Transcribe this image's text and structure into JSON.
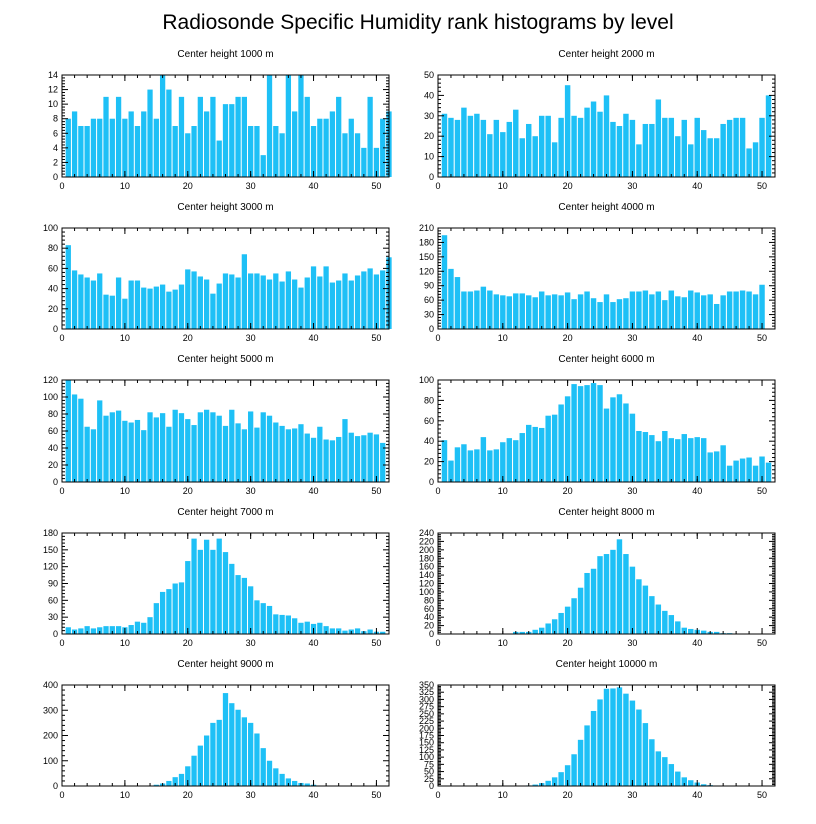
{
  "figure": {
    "title": "Radiosonde Specific Humidity rank histograms by level",
    "bar_color": "#1ec0f6",
    "axis_color": "#000000"
  },
  "chart_data": [
    {
      "type": "bar",
      "title": "Center height 1000 m",
      "xlim": [
        0,
        52
      ],
      "ylim": [
        0,
        14
      ],
      "xticks": [
        0,
        10,
        20,
        30,
        40,
        50
      ],
      "yticks": [
        0,
        2,
        4,
        6,
        8,
        10,
        12,
        14
      ],
      "x_start": 1,
      "values": [
        8,
        9,
        7,
        7,
        8,
        8,
        11,
        8,
        11,
        8,
        9,
        7,
        9,
        12,
        8,
        14,
        12,
        7,
        11,
        6,
        7,
        11,
        9,
        11,
        5,
        10,
        10,
        11,
        11,
        7,
        7,
        3,
        14,
        7,
        6,
        14,
        9,
        14,
        11,
        7,
        8,
        8,
        9,
        11,
        6,
        8,
        6,
        4,
        11,
        4,
        8,
        9
      ]
    },
    {
      "type": "bar",
      "title": "Center height 2000 m",
      "xlim": [
        0,
        52
      ],
      "ylim": [
        0,
        50
      ],
      "xticks": [
        0,
        10,
        20,
        30,
        40,
        50
      ],
      "yticks": [
        0,
        10,
        20,
        30,
        40,
        50
      ],
      "x_start": 1,
      "values": [
        31,
        29,
        28,
        34,
        30,
        31,
        28,
        21,
        28,
        22,
        27,
        33,
        19,
        26,
        20,
        30,
        30,
        17,
        29,
        45,
        30,
        29,
        34,
        37,
        32,
        40,
        27,
        25,
        31,
        28,
        16,
        26,
        26,
        38,
        29,
        29,
        20,
        28,
        16,
        29,
        23,
        19,
        19,
        26,
        28,
        29,
        29,
        14,
        17,
        29,
        40
      ]
    },
    {
      "type": "bar",
      "title": "Center height 3000 m",
      "xlim": [
        0,
        52
      ],
      "ylim": [
        0,
        100
      ],
      "xticks": [
        0,
        10,
        20,
        30,
        40,
        50
      ],
      "yticks": [
        0,
        20,
        40,
        60,
        80,
        100
      ],
      "x_start": 1,
      "values": [
        83,
        58,
        54,
        51,
        48,
        55,
        34,
        33,
        51,
        30,
        48,
        48,
        41,
        40,
        42,
        44,
        37,
        39,
        44,
        59,
        57,
        52,
        49,
        35,
        45,
        55,
        54,
        51,
        74,
        55,
        55,
        53,
        49,
        55,
        47,
        57,
        49,
        41,
        51,
        62,
        52,
        62,
        46,
        48,
        55,
        48,
        53,
        57,
        60,
        54,
        58,
        71
      ]
    },
    {
      "type": "bar",
      "title": "Center height 4000 m",
      "xlim": [
        0,
        52
      ],
      "ylim": [
        0,
        210
      ],
      "xticks": [
        0,
        10,
        20,
        30,
        40,
        50
      ],
      "yticks": [
        0,
        30,
        60,
        90,
        120,
        150,
        180,
        210
      ],
      "x_start": 1,
      "values": [
        195,
        125,
        108,
        78,
        78,
        80,
        88,
        80,
        72,
        70,
        68,
        74,
        74,
        70,
        66,
        78,
        70,
        72,
        70,
        76,
        62,
        72,
        78,
        64,
        56,
        72,
        56,
        62,
        64,
        78,
        78,
        80,
        72,
        78,
        60,
        80,
        68,
        66,
        80,
        76,
        70,
        72,
        52,
        70,
        78,
        78,
        80,
        78,
        72,
        92
      ]
    },
    {
      "type": "bar",
      "title": "Center height 5000 m",
      "xlim": [
        0,
        52
      ],
      "ylim": [
        0,
        120
      ],
      "xticks": [
        0,
        10,
        20,
        30,
        40,
        50
      ],
      "yticks": [
        0,
        20,
        40,
        60,
        80,
        100,
        120
      ],
      "x_start": 1,
      "values": [
        120,
        103,
        98,
        65,
        62,
        96,
        78,
        82,
        84,
        72,
        70,
        73,
        61,
        82,
        76,
        81,
        65,
        85,
        81,
        74,
        67,
        82,
        85,
        82,
        78,
        66,
        85,
        69,
        62,
        83,
        64,
        82,
        78,
        70,
        66,
        62,
        63,
        68,
        57,
        52,
        65,
        50,
        49,
        53,
        74,
        58,
        54,
        55,
        58,
        56,
        46
      ]
    },
    {
      "type": "bar",
      "title": "Center height 6000 m",
      "xlim": [
        0,
        52
      ],
      "ylim": [
        0,
        100
      ],
      "xticks": [
        0,
        10,
        20,
        30,
        40,
        50
      ],
      "yticks": [
        0,
        20,
        40,
        60,
        80,
        100
      ],
      "x_start": 1,
      "values": [
        41,
        21,
        34,
        37,
        31,
        32,
        44,
        31,
        32,
        39,
        43,
        41,
        48,
        56,
        54,
        53,
        65,
        66,
        76,
        84,
        96,
        94,
        95,
        97,
        95,
        72,
        83,
        86,
        77,
        67,
        50,
        49,
        46,
        40,
        50,
        43,
        42,
        47,
        43,
        44,
        43,
        29,
        30,
        36,
        16,
        21,
        23,
        24,
        16,
        25,
        19
      ]
    },
    {
      "type": "bar",
      "title": "Center height 7000 m",
      "xlim": [
        0,
        52
      ],
      "ylim": [
        0,
        180
      ],
      "xticks": [
        0,
        10,
        20,
        30,
        40,
        50
      ],
      "yticks": [
        0,
        30,
        60,
        90,
        120,
        150,
        180
      ],
      "x_start": 1,
      "values": [
        12,
        8,
        10,
        14,
        10,
        12,
        14,
        14,
        14,
        12,
        16,
        22,
        20,
        30,
        55,
        75,
        80,
        90,
        92,
        130,
        170,
        150,
        168,
        150,
        170,
        146,
        125,
        105,
        100,
        85,
        60,
        55,
        50,
        35,
        34,
        33,
        28,
        20,
        22,
        18,
        20,
        14,
        10,
        10,
        6,
        8,
        10,
        5,
        8,
        4,
        4
      ]
    },
    {
      "type": "bar",
      "title": "Center height 8000 m",
      "xlim": [
        0,
        52
      ],
      "ylim": [
        0,
        240
      ],
      "xticks": [
        0,
        10,
        20,
        30,
        40,
        50
      ],
      "yticks": [
        0,
        20,
        40,
        60,
        80,
        100,
        120,
        140,
        160,
        180,
        200,
        220,
        240
      ],
      "x_start": 1,
      "values": [
        0,
        0,
        0,
        0,
        0,
        0,
        0,
        0,
        0,
        0,
        0,
        5,
        5,
        5,
        10,
        15,
        25,
        35,
        50,
        65,
        85,
        110,
        145,
        155,
        185,
        190,
        200,
        225,
        190,
        160,
        130,
        115,
        90,
        70,
        55,
        45,
        30,
        15,
        12,
        10,
        8,
        5,
        5,
        2,
        2,
        0,
        0,
        0,
        0,
        0,
        0
      ]
    },
    {
      "type": "bar",
      "title": "Center height 9000 m",
      "xlim": [
        0,
        52
      ],
      "ylim": [
        0,
        400
      ],
      "xticks": [
        0,
        10,
        20,
        30,
        40,
        50
      ],
      "yticks": [
        0,
        100,
        200,
        300,
        400
      ],
      "x_start": 1,
      "values": [
        0,
        0,
        0,
        0,
        0,
        0,
        0,
        0,
        0,
        0,
        0,
        0,
        0,
        2,
        5,
        10,
        20,
        35,
        48,
        78,
        120,
        160,
        200,
        250,
        262,
        368,
        328,
        302,
        272,
        250,
        208,
        150,
        100,
        70,
        48,
        30,
        20,
        12,
        10,
        5,
        2,
        0,
        0,
        0,
        0,
        0,
        0,
        0,
        0,
        0,
        0
      ]
    },
    {
      "type": "bar",
      "title": "Center height 10000 m",
      "xlim": [
        0,
        52
      ],
      "ylim": [
        0,
        350
      ],
      "xticks": [
        0,
        10,
        20,
        30,
        40,
        50
      ],
      "yticks": [
        0,
        25,
        50,
        75,
        100,
        125,
        150,
        175,
        200,
        225,
        250,
        275,
        300,
        325,
        350
      ],
      "x_start": 1,
      "values": [
        0,
        0,
        0,
        0,
        0,
        0,
        0,
        0,
        0,
        0,
        0,
        0,
        0,
        2,
        5,
        10,
        18,
        30,
        48,
        72,
        110,
        160,
        210,
        260,
        300,
        337,
        338,
        342,
        320,
        296,
        265,
        218,
        162,
        120,
        100,
        76,
        50,
        30,
        20,
        12,
        6,
        3,
        0,
        0,
        0,
        0,
        0,
        0,
        0,
        0,
        0
      ]
    }
  ]
}
